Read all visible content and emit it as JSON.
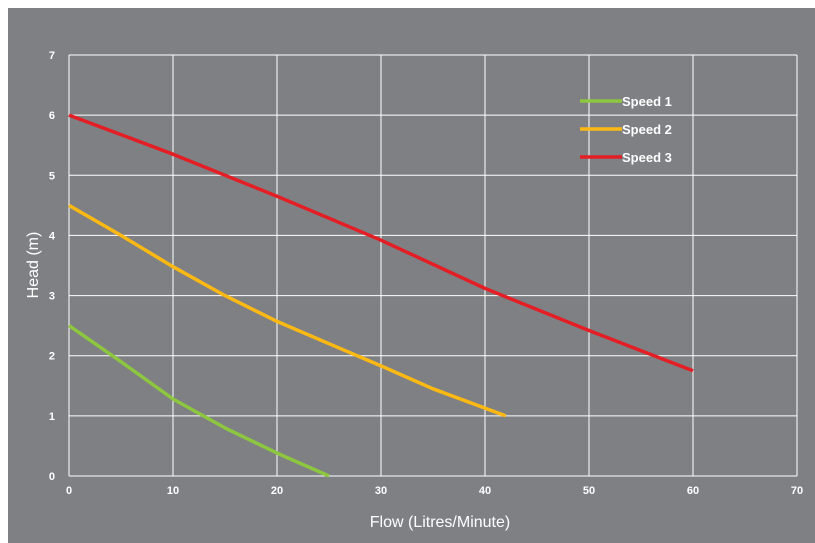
{
  "chart_data": {
    "type": "line",
    "title": "",
    "xlabel": "Flow (Litres/Minute)",
    "ylabel": "Head (m)",
    "xlim": [
      0,
      70
    ],
    "ylim": [
      0,
      7
    ],
    "xticks": [
      0,
      10,
      20,
      30,
      40,
      50,
      60,
      70
    ],
    "yticks": [
      0,
      1,
      2,
      3,
      4,
      5,
      6,
      7
    ],
    "grid": true,
    "legend_position": "top-right",
    "background_color": "#7f8084",
    "series": [
      {
        "name": "Speed 1",
        "color": "#8dc63f",
        "points": [
          [
            0,
            2.5
          ],
          [
            5,
            1.9
          ],
          [
            10,
            1.28
          ],
          [
            15,
            0.8
          ],
          [
            20,
            0.38
          ],
          [
            25,
            0.0
          ]
        ]
      },
      {
        "name": "Speed 2",
        "color": "#fdb913",
        "points": [
          [
            0,
            4.5
          ],
          [
            5,
            4.0
          ],
          [
            10,
            3.48
          ],
          [
            15,
            3.0
          ],
          [
            20,
            2.57
          ],
          [
            25,
            2.2
          ],
          [
            30,
            1.83
          ],
          [
            35,
            1.45
          ],
          [
            42,
            1.0
          ]
        ]
      },
      {
        "name": "Speed 3",
        "color": "#e31e24",
        "points": [
          [
            0,
            6.0
          ],
          [
            10,
            5.35
          ],
          [
            20,
            4.65
          ],
          [
            30,
            3.92
          ],
          [
            40,
            3.12
          ],
          [
            50,
            2.42
          ],
          [
            60,
            1.75
          ]
        ]
      }
    ]
  }
}
